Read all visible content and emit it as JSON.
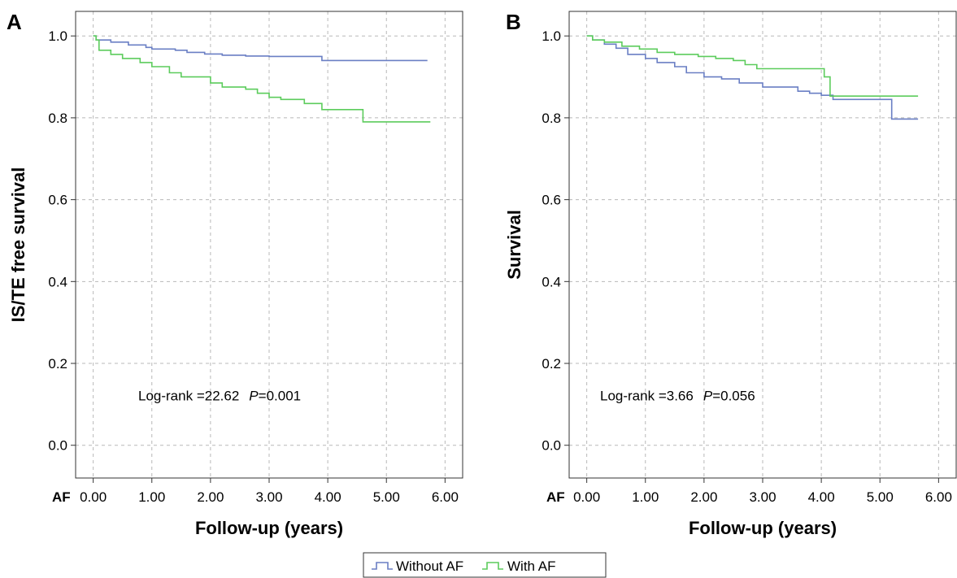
{
  "legend": {
    "entries": [
      {
        "label": "Without AF",
        "color": "#6a7fc4"
      },
      {
        "label": "With AF",
        "color": "#5ccc5c"
      }
    ]
  },
  "chart_data": [
    {
      "type": "line",
      "step": true,
      "panel_label": "A",
      "xlabel": "Follow-up (years)",
      "ylabel": "IS/TE free survival",
      "at_risk_label": "AF",
      "xlim": [
        -0.3,
        6.3
      ],
      "ylim": [
        -0.08,
        1.06
      ],
      "x_ticks": [
        "0.00",
        "1.00",
        "2.00",
        "3.00",
        "4.00",
        "5.00",
        "6.00"
      ],
      "y_ticks": [
        "0.0",
        "0.2",
        "0.4",
        "0.6",
        "0.8",
        "1.0"
      ],
      "grid": true,
      "annotation": {
        "prefix": "Log-rank =22.62",
        "p_label": "P",
        "p_value": "=0.001"
      },
      "series": [
        {
          "name": "Without AF",
          "color": "#6a7fc4",
          "x": [
            0,
            0.05,
            0.1,
            0.3,
            0.6,
            0.9,
            1.0,
            1.4,
            1.6,
            1.9,
            2.2,
            2.6,
            3.0,
            3.5,
            3.9,
            4.0,
            4.2,
            4.6,
            5.0,
            5.7
          ],
          "y": [
            1.0,
            0.99,
            0.99,
            0.985,
            0.978,
            0.972,
            0.968,
            0.965,
            0.96,
            0.956,
            0.953,
            0.951,
            0.95,
            0.95,
            0.94,
            0.94,
            0.94,
            0.94,
            0.94,
            0.94
          ]
        },
        {
          "name": "With AF",
          "color": "#5ccc5c",
          "x": [
            0,
            0.05,
            0.1,
            0.3,
            0.5,
            0.8,
            1.0,
            1.3,
            1.5,
            1.8,
            2.0,
            2.2,
            2.6,
            2.8,
            3.0,
            3.2,
            3.6,
            3.9,
            4.0,
            4.6,
            5.0,
            5.75
          ],
          "y": [
            1.0,
            0.99,
            0.965,
            0.955,
            0.945,
            0.935,
            0.925,
            0.91,
            0.9,
            0.9,
            0.885,
            0.875,
            0.87,
            0.86,
            0.85,
            0.845,
            0.835,
            0.82,
            0.82,
            0.79,
            0.79,
            0.79
          ]
        }
      ]
    },
    {
      "type": "line",
      "step": true,
      "panel_label": "B",
      "xlabel": "Follow-up (years)",
      "ylabel": "Survival",
      "at_risk_label": "AF",
      "xlim": [
        -0.3,
        6.3
      ],
      "ylim": [
        -0.08,
        1.06
      ],
      "x_ticks": [
        "0.00",
        "1.00",
        "2.00",
        "3.00",
        "4.00",
        "5.00",
        "6.00"
      ],
      "y_ticks": [
        "0.0",
        "0.2",
        "0.4",
        "0.6",
        "0.8",
        "1.0"
      ],
      "grid": true,
      "annotation": {
        "prefix": "Log-rank =3.66",
        "p_label": "P",
        "p_value": "=0.056"
      },
      "series": [
        {
          "name": "Without AF",
          "color": "#6a7fc4",
          "x": [
            0,
            0.1,
            0.3,
            0.5,
            0.7,
            1.0,
            1.2,
            1.5,
            1.7,
            2.0,
            2.3,
            2.6,
            3.0,
            3.3,
            3.6,
            3.8,
            4.0,
            4.2,
            5.0,
            5.2,
            5.65
          ],
          "y": [
            1.0,
            0.99,
            0.98,
            0.97,
            0.955,
            0.945,
            0.935,
            0.925,
            0.91,
            0.9,
            0.895,
            0.885,
            0.875,
            0.875,
            0.865,
            0.86,
            0.855,
            0.845,
            0.845,
            0.797,
            0.797
          ]
        },
        {
          "name": "With AF",
          "color": "#5ccc5c",
          "x": [
            0,
            0.1,
            0.3,
            0.6,
            0.9,
            1.2,
            1.5,
            1.9,
            2.2,
            2.5,
            2.7,
            2.9,
            3.1,
            3.5,
            4.0,
            4.05,
            4.15,
            4.5,
            5.0,
            5.65
          ],
          "y": [
            1.0,
            0.99,
            0.985,
            0.975,
            0.968,
            0.96,
            0.955,
            0.95,
            0.945,
            0.94,
            0.93,
            0.92,
            0.92,
            0.92,
            0.92,
            0.9,
            0.853,
            0.853,
            0.853,
            0.853
          ]
        }
      ]
    }
  ]
}
